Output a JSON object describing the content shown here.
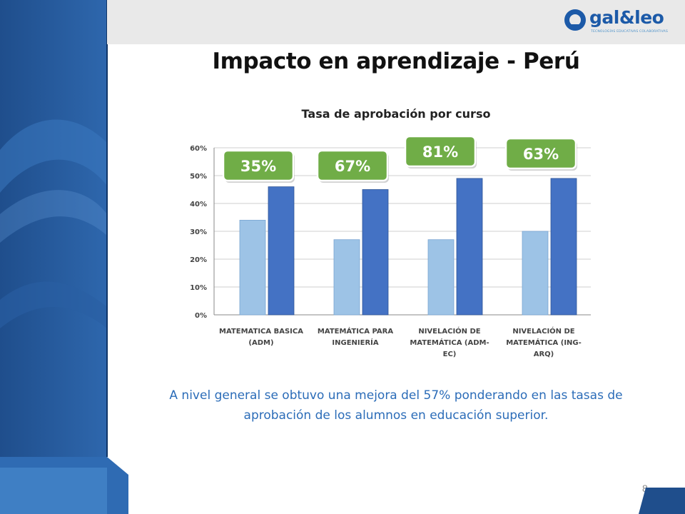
{
  "slide": {
    "title": "Impacto en aprendizaje - Perú",
    "caption": "A nivel general se obtuvo una mejora del 57% ponderando en las tasas de aprobación de los alumnos en educación superior.",
    "page_number": "8"
  },
  "logo": {
    "text": "gal&leo",
    "tagline": "TECNOLOGÍAS EDUCATIVAS COLABORATIVAS"
  },
  "colors": {
    "series_before": "#9dc3e6",
    "series_after": "#4472c4",
    "callout_fill": "#70ad47",
    "callout_stroke": "#ffffff",
    "sidebar_dark": "#1f4e8c",
    "sidebar_light": "#3f7fc4"
  },
  "chart_data": {
    "type": "bar",
    "title": "Tasa de aprobación por curso",
    "categories": [
      [
        "MATEMATICA BASICA",
        "(ADM)"
      ],
      [
        "MATEMÁTICA PARA",
        "INGENIERÍA"
      ],
      [
        "NIVELACIÓN DE",
        "MATEMÁTICA (ADM-",
        "EC)"
      ],
      [
        "NIVELACIÓN DE",
        "MATEMÁTICA (ING-",
        "ARQ)"
      ]
    ],
    "series": [
      {
        "values": [
          34,
          27,
          27,
          30
        ]
      },
      {
        "values": [
          46,
          45,
          49,
          49
        ]
      }
    ],
    "callouts": [
      "35%",
      "67%",
      "81%",
      "63%"
    ],
    "y_ticks": [
      "0%",
      "10%",
      "20%",
      "30%",
      "40%",
      "50%",
      "60%"
    ],
    "ylim": [
      0,
      60
    ],
    "grid": true,
    "xlabel": "",
    "ylabel": ""
  }
}
